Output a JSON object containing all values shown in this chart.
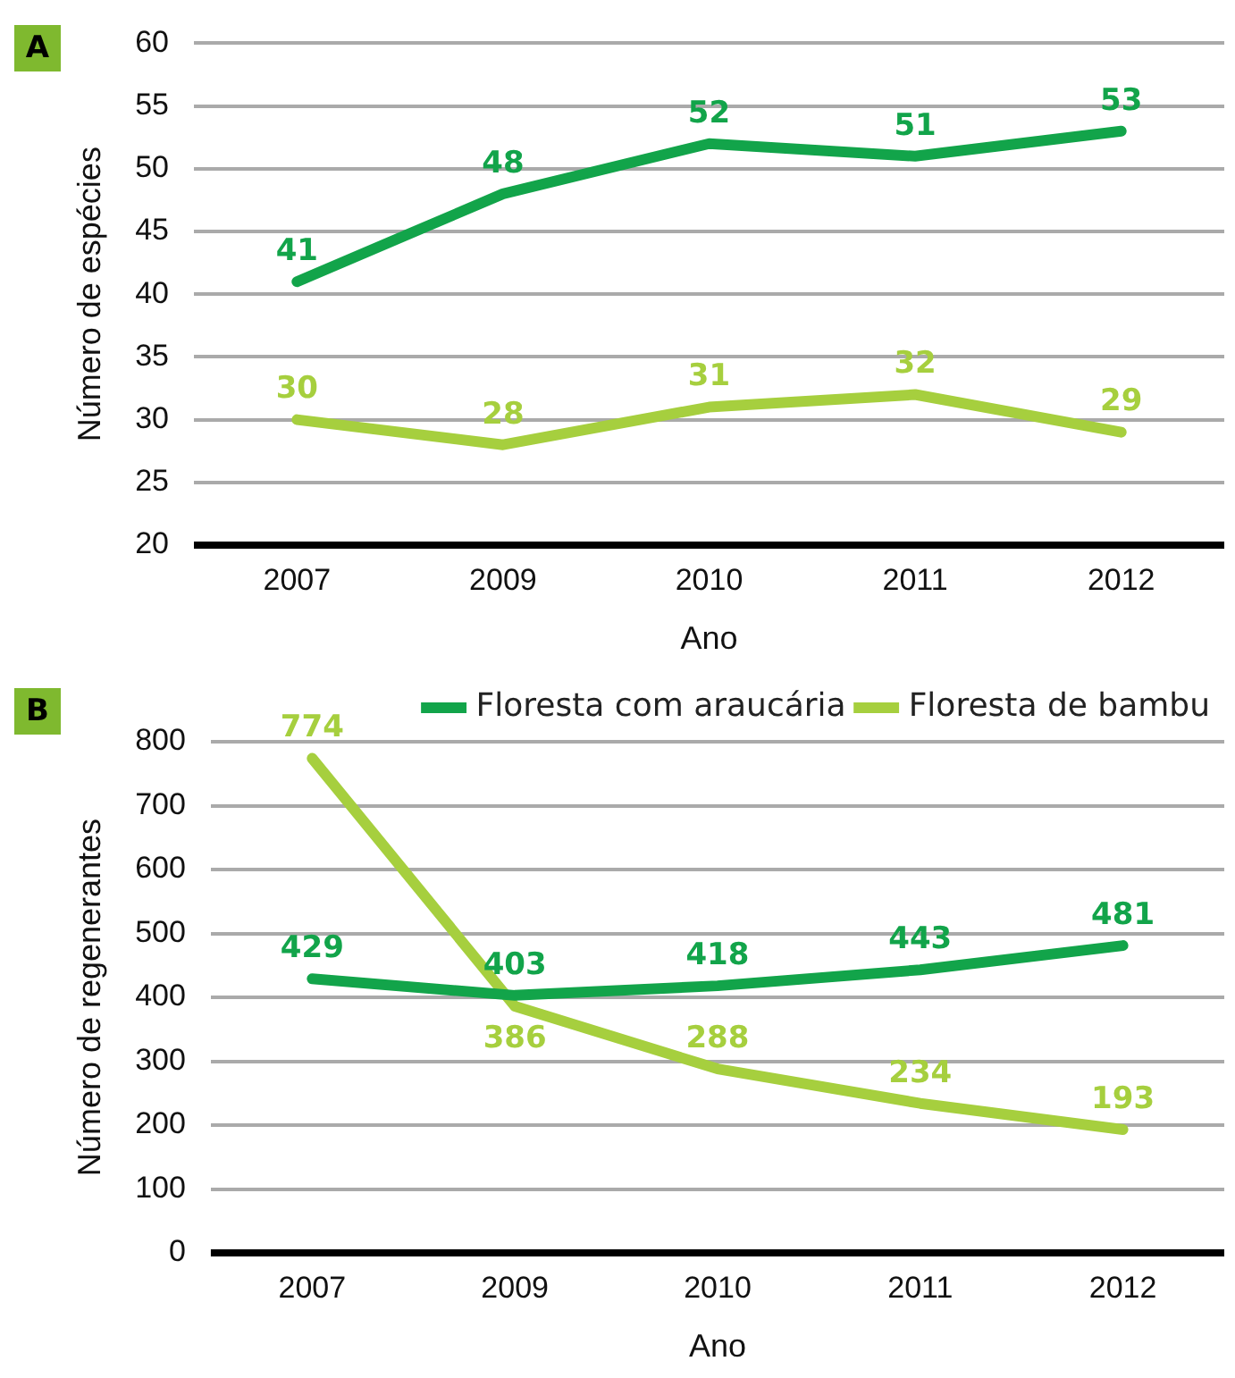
{
  "chart_data": [
    {
      "type": "line",
      "title": "A",
      "xlabel": "Ano",
      "ylabel": "Número de espécies",
      "categories": [
        "2007",
        "2009",
        "2010",
        "2011",
        "2012"
      ],
      "series": [
        {
          "color": "#12a44a",
          "values": [
            41,
            48,
            52,
            51,
            53
          ]
        },
        {
          "color": "#a6cf3e",
          "values": [
            30,
            28,
            31,
            32,
            29
          ]
        }
      ],
      "ylim": [
        20,
        60
      ],
      "yticks": [
        20,
        25,
        30,
        35,
        40,
        45,
        50,
        55,
        60
      ],
      "grid": "y",
      "data_labels": true,
      "legend": false,
      "marker": "none"
    },
    {
      "type": "line",
      "title": "B",
      "xlabel": "Ano",
      "ylabel": "Número de regenerantes",
      "categories": [
        "2007",
        "2009",
        "2010",
        "2011",
        "2012"
      ],
      "series": [
        {
          "name": "Floresta com araucária",
          "color": "#12a44a",
          "values": [
            429,
            403,
            418,
            443,
            481
          ]
        },
        {
          "name": "Floresta de bambu",
          "color": "#a6cf3e",
          "values": [
            774,
            386,
            288,
            234,
            193
          ]
        }
      ],
      "ylim": [
        0,
        800
      ],
      "yticks": [
        0,
        100,
        200,
        300,
        400,
        500,
        600,
        700,
        800
      ],
      "grid": "y",
      "data_labels": true,
      "legend": "top right",
      "marker": "none"
    }
  ]
}
